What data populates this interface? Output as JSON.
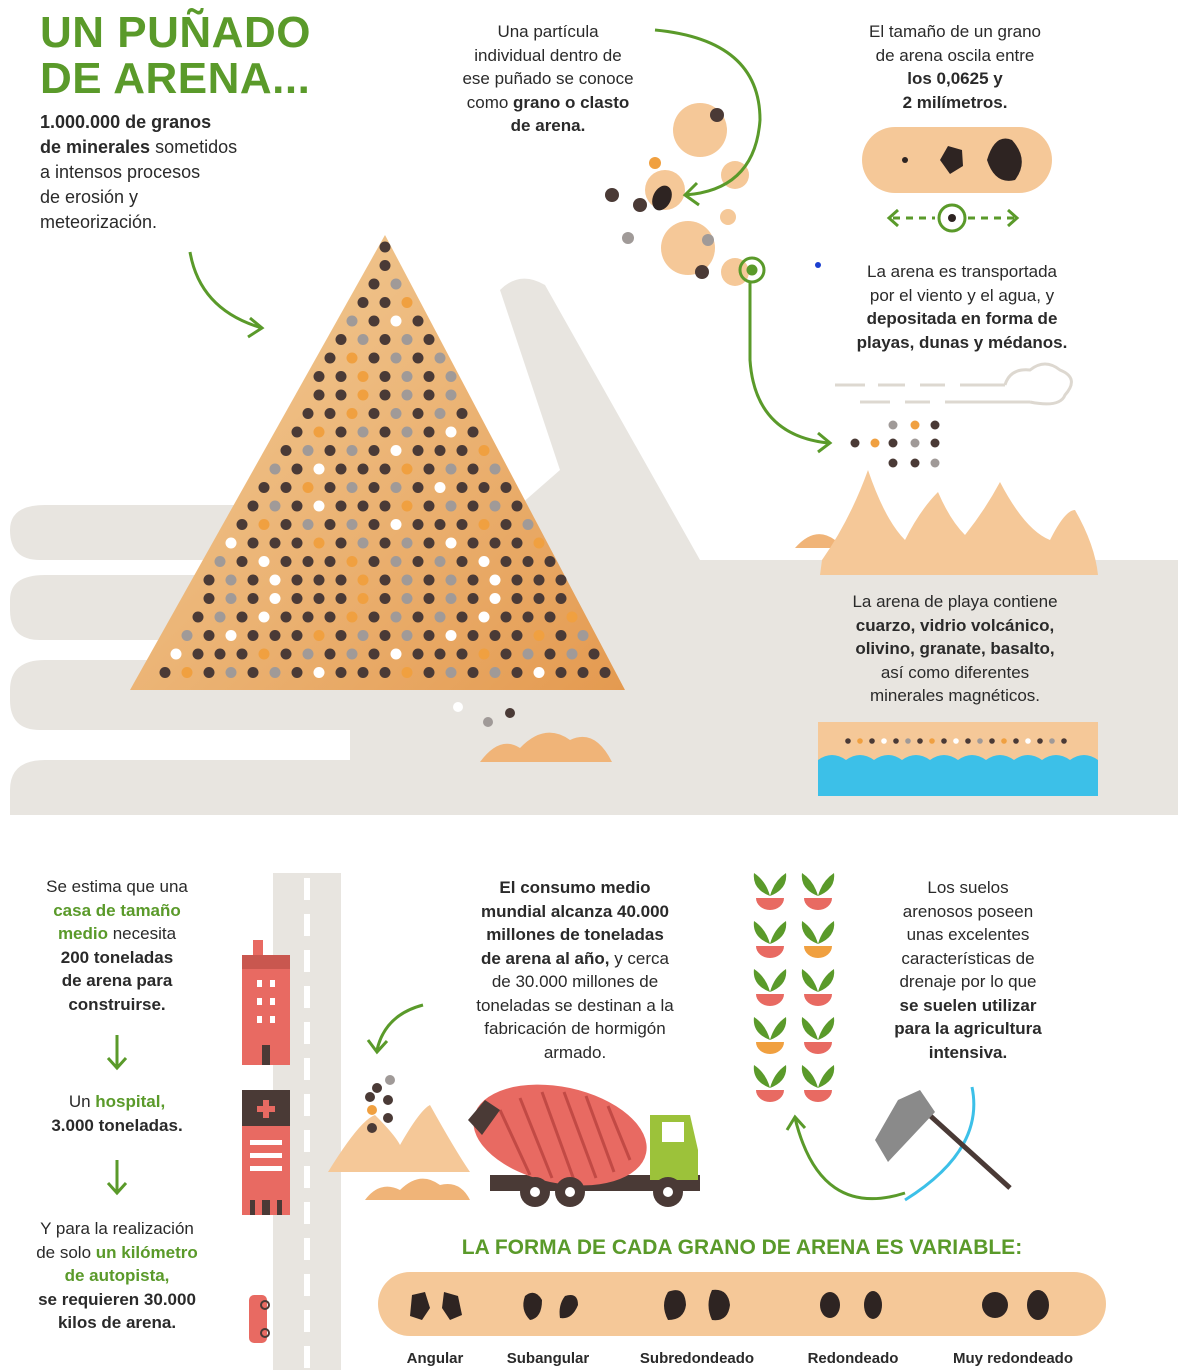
{
  "title": [
    "UN PUÑADO",
    "DE ARENA..."
  ],
  "intro": [
    [
      {
        "text": "1.000.000 de granos",
        "style": "bold"
      }
    ],
    [
      {
        "text": "de minerales",
        "style": "bold"
      },
      {
        "text": " sometidos"
      }
    ],
    [
      {
        "text": "a intensos procesos"
      }
    ],
    [
      {
        "text": "de erosión y"
      }
    ],
    [
      {
        "text": "meteorización."
      }
    ]
  ],
  "particle": [
    [
      {
        "text": "Una partícula"
      }
    ],
    [
      {
        "text": "individual dentro de"
      }
    ],
    [
      {
        "text": "ese puñado se conoce"
      }
    ],
    [
      {
        "text": "como "
      },
      {
        "text": "grano o clasto",
        "style": "bold"
      }
    ],
    [
      {
        "text": "de arena.",
        "style": "bold"
      }
    ]
  ],
  "size": [
    [
      {
        "text": "El tamaño de un grano"
      }
    ],
    [
      {
        "text": "de arena oscila entre"
      }
    ],
    [
      {
        "text": "los 0,0625 y",
        "style": "bold"
      }
    ],
    [
      {
        "text": "2 milímetros.",
        "style": "bold"
      }
    ]
  ],
  "transport": [
    [
      {
        "text": "La arena es transportada"
      }
    ],
    [
      {
        "text": "por el viento y el agua, y"
      }
    ],
    [
      {
        "text": "depositada en forma de",
        "style": "bold"
      }
    ],
    [
      {
        "text": "playas, dunas y médanos.",
        "style": "bold"
      }
    ]
  ],
  "beach": [
    [
      {
        "text": "La arena de playa contiene"
      }
    ],
    [
      {
        "text": "cuarzo, vidrio volcánico,",
        "style": "bold"
      }
    ],
    [
      {
        "text": "olivino, granate, basalto,",
        "style": "bold"
      }
    ],
    [
      {
        "text": "así como diferentes"
      }
    ],
    [
      {
        "text": "minerales magnéticos."
      }
    ]
  ],
  "house": [
    [
      {
        "text": "Se estima que una"
      }
    ],
    [
      {
        "text": "casa de tamaño",
        "style": "accent"
      }
    ],
    [
      {
        "text": "medio",
        "style": "accent"
      },
      {
        "text": " necesita"
      }
    ],
    [
      {
        "text": "200 toneladas",
        "style": "bold"
      }
    ],
    [
      {
        "text": "de arena para",
        "style": "bold"
      }
    ],
    [
      {
        "text": "construirse.",
        "style": "bold"
      }
    ]
  ],
  "hospital": [
    [
      {
        "text": "Un "
      },
      {
        "text": "hospital,",
        "style": "accent"
      }
    ],
    [
      {
        "text": "3.000 toneladas.",
        "style": "bold"
      }
    ]
  ],
  "highway": [
    [
      {
        "text": "Y para la realización"
      }
    ],
    [
      {
        "text": "de solo "
      },
      {
        "text": "un kilómetro",
        "style": "accent"
      }
    ],
    [
      {
        "text": "de autopista,",
        "style": "accent"
      }
    ],
    [
      {
        "text": "se requieren 30.000",
        "style": "bold"
      }
    ],
    [
      {
        "text": "kilos de arena.",
        "style": "bold"
      }
    ]
  ],
  "consumption": [
    [
      {
        "text": "El consumo medio",
        "style": "bold"
      }
    ],
    [
      {
        "text": "mundial alcanza 40.000",
        "style": "bold"
      }
    ],
    [
      {
        "text": "millones de toneladas",
        "style": "bold"
      }
    ],
    [
      {
        "text": "de arena al año,",
        "style": "bold"
      },
      {
        "text": " y cerca"
      }
    ],
    [
      {
        "text": "de 30.000 millones de"
      }
    ],
    [
      {
        "text": "toneladas se destinan a la"
      }
    ],
    [
      {
        "text": "fabricación de hormigón"
      }
    ],
    [
      {
        "text": "armado."
      }
    ]
  ],
  "soil": [
    [
      {
        "text": "Los suelos"
      }
    ],
    [
      {
        "text": "arenosos poseen"
      }
    ],
    [
      {
        "text": "unas excelentes"
      }
    ],
    [
      {
        "text": "características de"
      }
    ],
    [
      {
        "text": "drenaje por lo que"
      }
    ],
    [
      {
        "text": "se suelen utilizar",
        "style": "bold"
      }
    ],
    [
      {
        "text": "para la agricultura",
        "style": "bold"
      }
    ],
    [
      {
        "text": "intensiva.",
        "style": "bold"
      }
    ]
  ],
  "shapes_title": "LA FORMA DE CADA GRANO DE ARENA ES VARIABLE:",
  "shapes": [
    "Angular",
    "Subangular",
    "Subredondeado",
    "Redondeado",
    "Muy redondeado"
  ]
}
